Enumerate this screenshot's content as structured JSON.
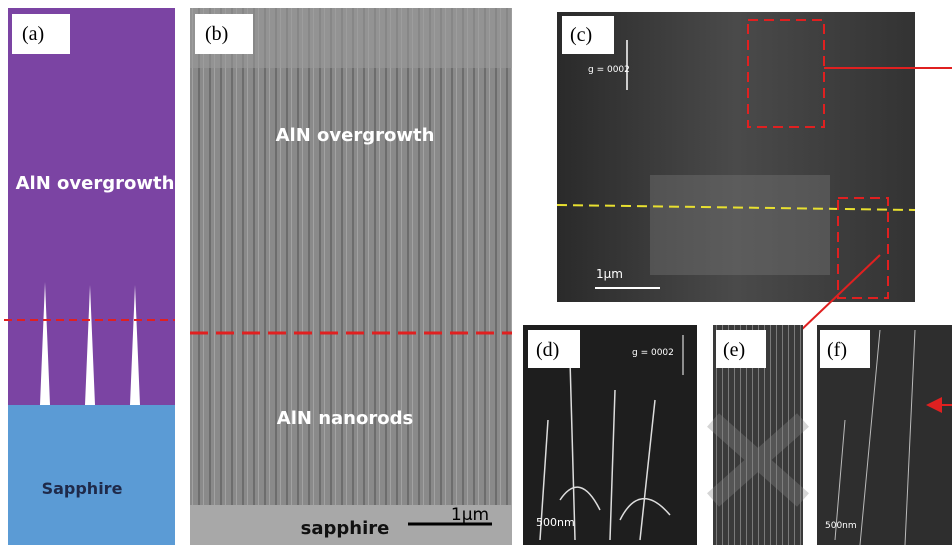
{
  "panels": [
    {
      "label": "(a)",
      "texts": [
        "AlN overgrowth",
        "Sapphire"
      ]
    },
    {
      "label": "(b)",
      "texts": [
        "AlN overgrowth",
        "AlN nanorods",
        "sapphire"
      ],
      "scale_bar": "1μm"
    },
    {
      "label": "(c)",
      "texts": [
        "g = 0002"
      ],
      "scale_bar": "1μm"
    },
    {
      "label": "(d)",
      "texts": [
        "g = 0002"
      ],
      "scale_bar": "500nm"
    },
    {
      "label": "(e)",
      "texts": []
    },
    {
      "label": "(f)",
      "texts": [],
      "scale_bar": "500nm"
    }
  ]
}
